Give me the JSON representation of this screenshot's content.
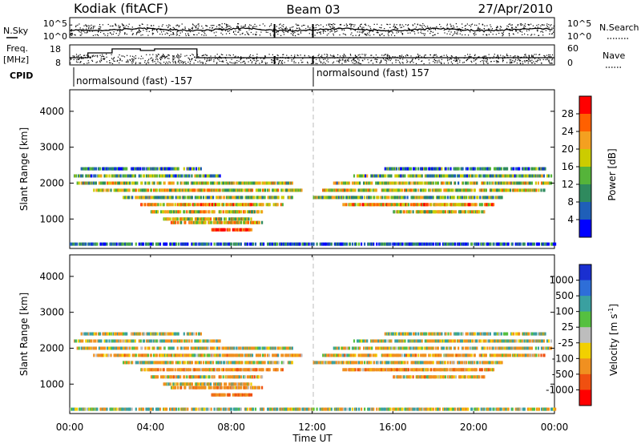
{
  "header": {
    "station": "Kodiak (fitACF)",
    "beam": "Beam 03",
    "date": "27/Apr/2010"
  },
  "top_panels": {
    "nsky_label": "N.Sky",
    "nsearch_label": "N.Search",
    "nsky_ticks": [
      "10^5",
      "10^0"
    ],
    "nsearch_ticks": [
      "10^5",
      "10^0"
    ],
    "freq_label": "Freq.",
    "freq_unit": "[MHz]",
    "freq_ticks": [
      "18",
      "8"
    ],
    "nave_label": "Nave",
    "nave_ticks": [
      "60",
      "0"
    ],
    "cpid_label": "CPID",
    "cpid_segments": [
      {
        "label": "normalsound (fast) -157",
        "start_hour": 0,
        "end_hour": 12
      },
      {
        "label": "normalsound (fast) 157",
        "start_hour": 12,
        "end_hour": 24
      }
    ]
  },
  "x_axis": {
    "ticks": [
      "00:00",
      "04:00",
      "08:00",
      "12:00",
      "16:00",
      "20:00",
      "00:00"
    ],
    "label": "Time UT"
  },
  "y_axis": {
    "label": "Slant Range [km]",
    "ticks": [
      "1000",
      "2000",
      "3000",
      "4000"
    ]
  },
  "power_colorbar": {
    "label": "Power [dB]",
    "ticks": [
      "4",
      "8",
      "12",
      "16",
      "20",
      "24",
      "28"
    ],
    "colors": [
      "#0000ff",
      "#1f5fb8",
      "#2f8a5e",
      "#55b43a",
      "#cccc00",
      "#f4a020",
      "#ff6000",
      "#ff0000"
    ]
  },
  "velocity_colorbar": {
    "label": "Velocity [m s",
    "label_sup": "-1",
    "label_end": "]",
    "ticks": [
      "1000",
      "500",
      "100",
      "25",
      "-25",
      "-100",
      "-500",
      "-1000"
    ],
    "colors": [
      "#1a2fd0",
      "#2e6ed8",
      "#3aa0a0",
      "#55c040",
      "#bdbdbd",
      "#f2d000",
      "#f09020",
      "#f05010",
      "#ff0000"
    ]
  },
  "chart_data": [
    {
      "type": "heatmap",
      "title": "Power",
      "xlabel": "Time UT",
      "ylabel": "Slant Range [km]",
      "xlim": [
        0,
        24
      ],
      "ylim": [
        180,
        4600
      ],
      "colorbar_label": "Power [dB]",
      "colorbar_range": [
        0,
        32
      ],
      "bands": [
        {
          "range_km": 2400,
          "hours": [
            [
              0.5,
              6.5
            ],
            [
              15.5,
              23.5
            ]
          ],
          "level": 8
        },
        {
          "range_km": 2200,
          "hours": [
            [
              0.2,
              7.5
            ],
            [
              14.0,
              23.8
            ]
          ],
          "level": 12
        },
        {
          "range_km": 2000,
          "hours": [
            [
              0.3,
              11.0
            ],
            [
              13.0,
              23.8
            ]
          ],
          "level": 16
        },
        {
          "range_km": 1800,
          "hours": [
            [
              1.0,
              11.5
            ],
            [
              12.5,
              23.5
            ]
          ],
          "level": 18
        },
        {
          "range_km": 1600,
          "hours": [
            [
              2.5,
              11.0
            ],
            [
              12.0,
              21.5
            ]
          ],
          "level": 14
        },
        {
          "range_km": 1400,
          "hours": [
            [
              3.5,
              10.5
            ],
            [
              13.5,
              21.0
            ]
          ],
          "level": 22
        },
        {
          "range_km": 1200,
          "hours": [
            [
              4.0,
              9.5
            ],
            [
              16.0,
              20.5
            ]
          ],
          "level": 18
        },
        {
          "range_km": 1000,
          "hours": [
            [
              4.5,
              9.0
            ]
          ],
          "level": 18
        },
        {
          "range_km": 900,
          "hours": [
            [
              5.0,
              9.5
            ]
          ],
          "level": 20
        },
        {
          "range_km": 700,
          "hours": [
            [
              7.0,
              9.0
            ]
          ],
          "level": 28
        },
        {
          "range_km": 300,
          "hours": [
            [
              0.0,
              24.0
            ]
          ],
          "level": 6
        }
      ]
    },
    {
      "type": "heatmap",
      "title": "Velocity",
      "xlabel": "Time UT",
      "ylabel": "Slant Range [km]",
      "xlim": [
        0,
        24
      ],
      "ylim": [
        180,
        4600
      ],
      "colorbar_label": "Velocity [m s-1]",
      "colorbar_range": [
        -1000,
        1000
      ],
      "bands": [
        {
          "range_km": 2400,
          "hours": [
            [
              0.5,
              6.5
            ],
            [
              15.5,
              23.5
            ]
          ],
          "level": 0
        },
        {
          "range_km": 2200,
          "hours": [
            [
              0.2,
              7.5
            ],
            [
              14.0,
              23.8
            ]
          ],
          "level": -50
        },
        {
          "range_km": 2000,
          "hours": [
            [
              0.3,
              11.0
            ],
            [
              13.0,
              23.8
            ]
          ],
          "level": -100
        },
        {
          "range_km": 1800,
          "hours": [
            [
              1.0,
              11.5
            ],
            [
              12.5,
              23.5
            ]
          ],
          "level": -200
        },
        {
          "range_km": 1600,
          "hours": [
            [
              2.5,
              11.0
            ],
            [
              12.0,
              21.5
            ]
          ],
          "level": -100
        },
        {
          "range_km": 1400,
          "hours": [
            [
              3.5,
              10.5
            ],
            [
              13.5,
              21.0
            ]
          ],
          "level": -300
        },
        {
          "range_km": 1200,
          "hours": [
            [
              4.0,
              9.5
            ],
            [
              16.0,
              20.5
            ]
          ],
          "level": -200
        },
        {
          "range_km": 1000,
          "hours": [
            [
              4.5,
              9.0
            ]
          ],
          "level": -100
        },
        {
          "range_km": 900,
          "hours": [
            [
              5.0,
              9.5
            ]
          ],
          "level": -300
        },
        {
          "range_km": 700,
          "hours": [
            [
              7.0,
              9.0
            ]
          ],
          "level": -500
        },
        {
          "range_km": 300,
          "hours": [
            [
              0.0,
              24.0
            ]
          ],
          "level": 0
        }
      ]
    }
  ]
}
